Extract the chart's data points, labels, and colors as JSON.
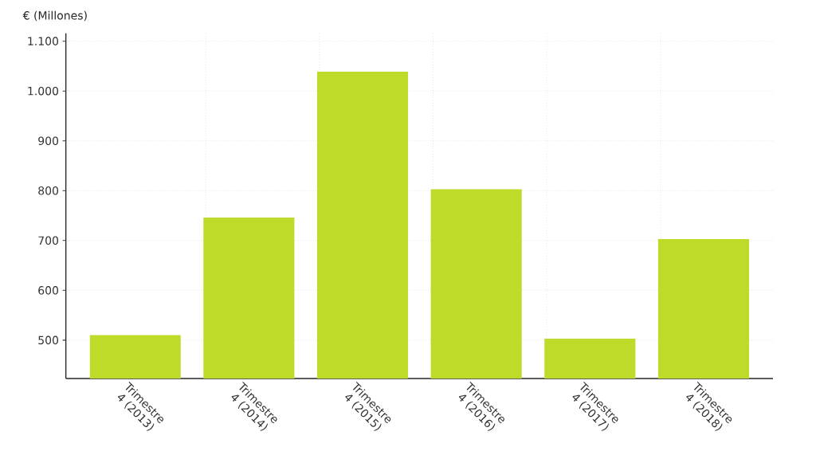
{
  "chart_data": {
    "type": "bar",
    "ylabel": "€ (Millones)",
    "categories": [
      "Trimestre 4 (2013)",
      "Trimestre 4 (2014)",
      "Trimestre 4 (2015)",
      "Trimestre 4 (2016)",
      "Trimestre 4 (2017)",
      "Trimestre 4 (2018)"
    ],
    "values": [
      510,
      746,
      1039,
      803,
      503,
      703
    ],
    "color": "#bedb29",
    "ylim": [
      423,
      1116
    ],
    "yticks": [
      500,
      600,
      700,
      800,
      900,
      {
        "value": 1000,
        "label": "1.000"
      },
      {
        "value": 1100,
        "label": "1.100"
      }
    ],
    "grid": true
  }
}
